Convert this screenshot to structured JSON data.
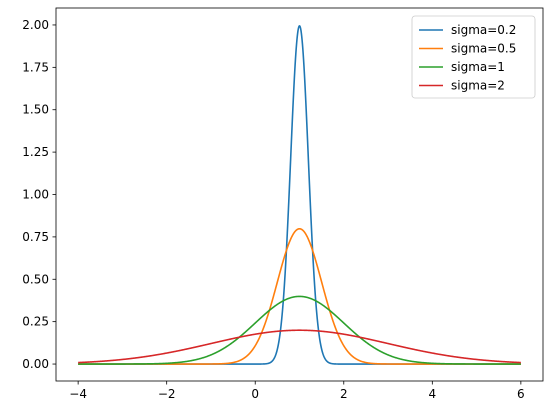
{
  "chart_data": {
    "type": "line",
    "title": "",
    "xlabel": "",
    "ylabel": "",
    "xlim": [
      -4.5,
      6.5
    ],
    "ylim": [
      -0.1,
      2.1
    ],
    "x_ticks": [
      -4,
      -2,
      0,
      2,
      4,
      6
    ],
    "x_tick_labels": [
      "−4",
      "−2",
      "0",
      "2",
      "4",
      "6"
    ],
    "y_ticks": [
      0.0,
      0.25,
      0.5,
      0.75,
      1.0,
      1.25,
      1.5,
      1.75,
      2.0
    ],
    "y_tick_labels": [
      "0.00",
      "0.25",
      "0.50",
      "0.75",
      "1.00",
      "1.25",
      "1.50",
      "1.75",
      "2.00"
    ],
    "grid": false,
    "legend_position": "top-right",
    "x_range": [
      -4,
      6
    ],
    "mu": 1,
    "series": [
      {
        "name": "sigma=0.2",
        "sigma": 0.2,
        "color": "#1f77b4"
      },
      {
        "name": "sigma=0.5",
        "sigma": 0.5,
        "color": "#ff7f0e"
      },
      {
        "name": "sigma=1",
        "sigma": 1,
        "color": "#2ca02c"
      },
      {
        "name": "sigma=2",
        "sigma": 2,
        "color": "#d62728"
      }
    ]
  }
}
